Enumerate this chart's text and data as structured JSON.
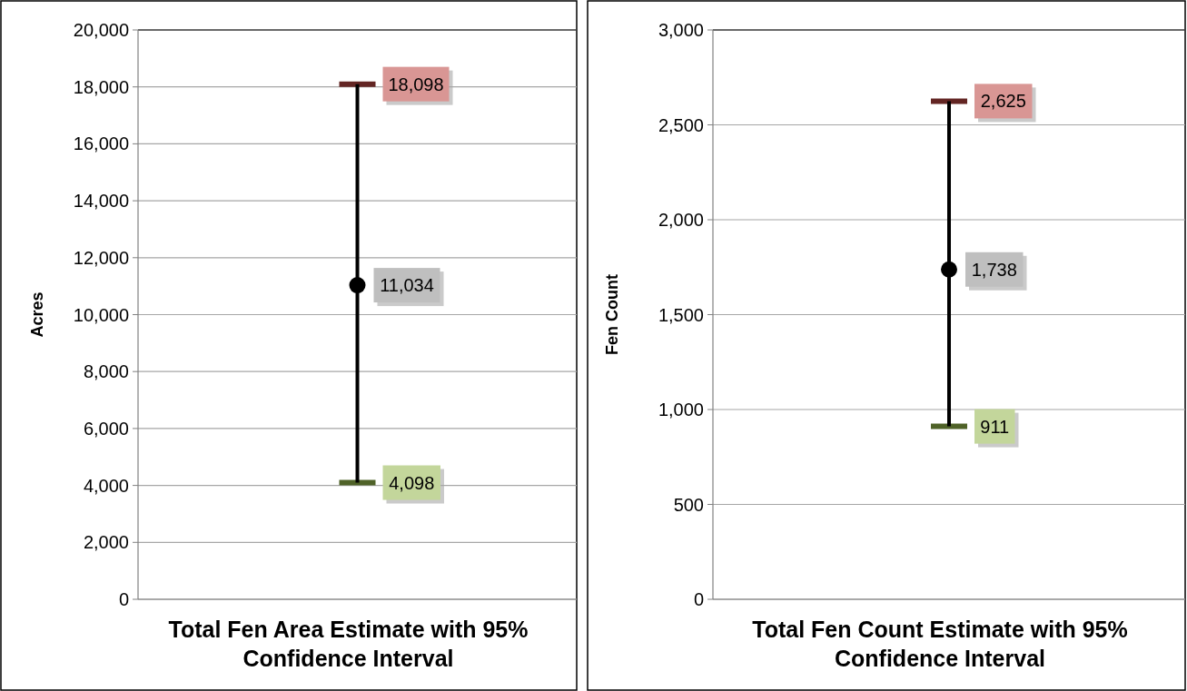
{
  "chart_data": [
    {
      "type": "scatter",
      "xlabel": "Total Fen Area Estimate with 95% Confidence Interval",
      "ylabel": "Acres",
      "categories": [
        null
      ],
      "values": [
        11034
      ],
      "errors": [
        [
          4098,
          18098
        ]
      ],
      "value_labels": [
        "11,034"
      ],
      "color": "#000000",
      "marker": "circle",
      "grid": "y",
      "ylim": [
        0,
        20000
      ],
      "yticks": [
        {
          "value": 0,
          "label": "0"
        },
        {
          "value": 2000,
          "label": "2,000"
        },
        {
          "value": 4000,
          "label": "4,000"
        },
        {
          "value": 6000,
          "label": "6,000"
        },
        {
          "value": 8000,
          "label": "8,000"
        },
        {
          "value": 10000,
          "label": "10,000"
        },
        {
          "value": 12000,
          "label": "12,000"
        },
        {
          "value": 14000,
          "label": "14,000"
        },
        {
          "value": 16000,
          "label": "16,000"
        },
        {
          "value": 18000,
          "label": "18,000"
        },
        {
          "value": 20000,
          "label": "20,000"
        }
      ],
      "annotations": [
        "18,098",
        "4,098"
      ]
    },
    {
      "type": "scatter",
      "xlabel": "Total Fen Count Estimate with 95% Confidence Interval",
      "ylabel": "Fen Count",
      "categories": [
        null
      ],
      "values": [
        1738
      ],
      "errors": [
        [
          911,
          2625
        ]
      ],
      "value_labels": [
        "1,738"
      ],
      "color": "#000000",
      "marker": "circle",
      "grid": "y",
      "ylim": [
        0,
        3000
      ],
      "yticks": [
        {
          "value": 0,
          "label": "0"
        },
        {
          "value": 500,
          "label": "500"
        },
        {
          "value": 1000,
          "label": "1,000"
        },
        {
          "value": 1500,
          "label": "1,500"
        },
        {
          "value": 2000,
          "label": "2,000"
        },
        {
          "value": 2500,
          "label": "2,500"
        },
        {
          "value": 3000,
          "label": "3,000"
        }
      ],
      "annotations": [
        "2,625",
        "911"
      ]
    }
  ]
}
